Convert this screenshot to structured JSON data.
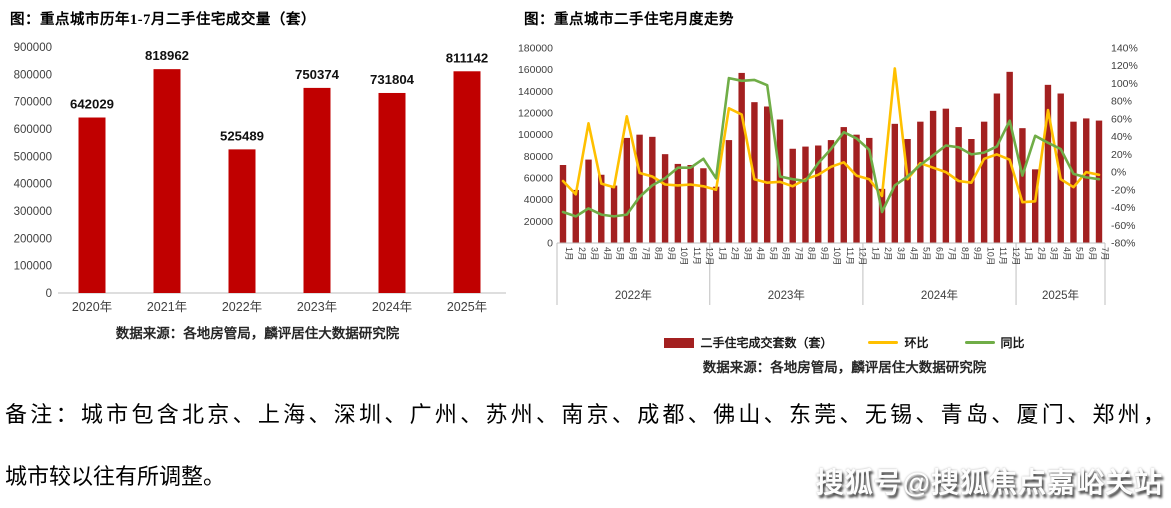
{
  "page": {
    "background": "#FFFFFF"
  },
  "chart_data": [
    {
      "id": "annual-volume",
      "type": "bar",
      "title": "图：重点城市历年1-7月二手住宅成交量（套）",
      "source": "数据来源：各地房管局，麟评居住大数据研究院",
      "categories": [
        "2020年",
        "2021年",
        "2022年",
        "2023年",
        "2024年",
        "2025年"
      ],
      "values": [
        642029,
        818962,
        525489,
        750374,
        731804,
        811142
      ],
      "ylim": [
        0,
        900000
      ],
      "ytick_step": 100000,
      "bar_color": "#C00000",
      "axis_text_color": "#404040",
      "axis_line_color": "#C9C9C9",
      "grid": false,
      "data_labels": true,
      "legend_position": "none"
    },
    {
      "id": "monthly-trend",
      "type": "bar+line",
      "title": "图：重点城市二手住宅月度走势",
      "source": "数据来源：各地房管局，麟评居住大数据研究院",
      "year_groups": [
        {
          "label": "2022年",
          "months": 12
        },
        {
          "label": "2023年",
          "months": 12
        },
        {
          "label": "2024年",
          "months": 12
        },
        {
          "label": "2025年",
          "months": 7
        }
      ],
      "month_labels": [
        "1月",
        "2月",
        "3月",
        "4月",
        "5月",
        "6月",
        "7月",
        "8月",
        "9月",
        "10月",
        "11月",
        "12月",
        "1月",
        "2月",
        "3月",
        "4月",
        "5月",
        "6月",
        "7月",
        "8月",
        "9月",
        "10月",
        "11月",
        "12月",
        "1月",
        "2月",
        "3月",
        "4月",
        "5月",
        "6月",
        "7月",
        "8月",
        "9月",
        "10月",
        "11月",
        "12月",
        "1月",
        "2月",
        "3月",
        "4月",
        "5月",
        "6月",
        "7月"
      ],
      "left_axis": {
        "min": 0,
        "max": 180000,
        "step": 20000
      },
      "right_axis": {
        "min": -80,
        "max": 140,
        "step": 20,
        "suffix": "%"
      },
      "axis_text_color": "#404040",
      "axis_line_color": "#BFBFBF",
      "grid": false,
      "legend_position": "bottom",
      "series": [
        {
          "name": "二手住宅成交套数（套）",
          "type": "bar",
          "axis": "left",
          "color": "#A32020",
          "values": [
            72000,
            49000,
            77000,
            63000,
            53000,
            97000,
            100000,
            98000,
            82000,
            73000,
            72000,
            69000,
            52000,
            95000,
            157000,
            130000,
            126000,
            114000,
            87000,
            89000,
            90000,
            95000,
            107000,
            100000,
            97000,
            50000,
            110000,
            96000,
            112000,
            122000,
            124000,
            107000,
            96000,
            112000,
            138000,
            158000,
            106000,
            68000,
            146000,
            138000,
            112000,
            115000,
            113000
          ]
        },
        {
          "name": "环比",
          "type": "line",
          "axis": "right",
          "color": "#FFC000",
          "values": [
            -10,
            -25,
            55,
            -13,
            -17,
            63,
            -1,
            -5,
            -14,
            -15,
            -14,
            -16,
            -20,
            72,
            65,
            -8,
            -12,
            -11,
            -16,
            -8,
            -3,
            6,
            11,
            -4,
            -8,
            -27,
            117,
            -8,
            10,
            5,
            0,
            -10,
            -12,
            15,
            20,
            14,
            -34,
            -33,
            70,
            -8,
            -17,
            0,
            -3
          ]
        },
        {
          "name": "同比",
          "type": "line",
          "axis": "right",
          "color": "#70AD47",
          "values": [
            -45,
            -50,
            -41,
            -48,
            -50,
            -48,
            -28,
            -15,
            -7,
            5,
            5,
            15,
            -7,
            106,
            103,
            104,
            98,
            -5,
            -8,
            -10,
            10,
            26,
            45,
            38,
            25,
            -45,
            -15,
            -5,
            8,
            19,
            30,
            28,
            20,
            22,
            29,
            58,
            -4,
            41,
            33,
            26,
            -2,
            -6,
            -8
          ]
        }
      ]
    }
  ],
  "note": {
    "line1": "备注：城市包含北京、上海、深圳、广州、苏州、南京、成都、佛山、东莞、无锡、青岛、厦门、郑州，",
    "line2": "城市较以往有所调整。"
  },
  "watermark": {
    "text": "搜狐号@搜狐焦点嘉峪关站"
  }
}
